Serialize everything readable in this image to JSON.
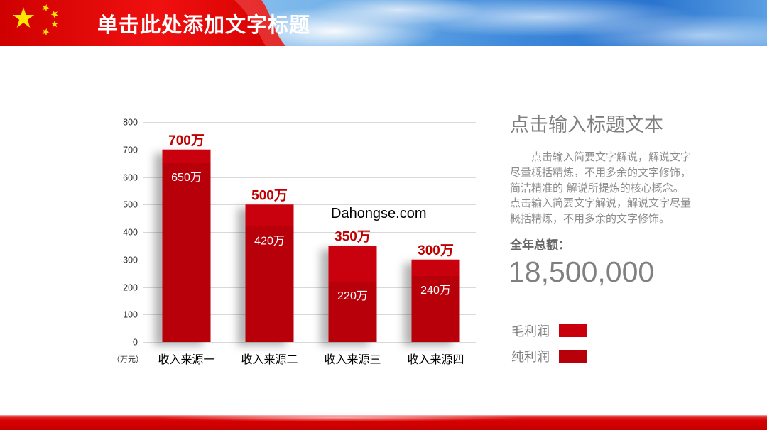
{
  "header": {
    "title": "单击此处添加文字标题"
  },
  "colors": {
    "banner_red": "#e00000",
    "star_yellow": "#ffe400",
    "accent_red": "#c00000",
    "body_text": "#7f7f7f"
  },
  "chart_data": {
    "type": "bar",
    "categories": [
      "收入来源一",
      "收入来源二",
      "收入来源三",
      "收入来源四"
    ],
    "series": [
      {
        "name": "毛利润",
        "values": [
          700,
          500,
          350,
          300
        ],
        "data_labels": [
          "700万",
          "500万",
          "350万",
          "300万"
        ],
        "color": "#c9000c"
      },
      {
        "name": "纯利润",
        "values": [
          650,
          420,
          220,
          240
        ],
        "data_labels": [
          "650万",
          "420万",
          "220万",
          "240万"
        ],
        "color": "#b7000a"
      }
    ],
    "y_ticks": [
      0,
      100,
      200,
      300,
      400,
      500,
      600,
      700,
      800
    ],
    "ylim": [
      0,
      800
    ],
    "ylabel": "（万元）",
    "grid": true,
    "legend": "right",
    "colors": {
      "data_label_top": "#c00000",
      "data_label_inner": "#ffffff",
      "gridline": "#d9d9d9"
    }
  },
  "panel": {
    "title": "点击输入标题文本",
    "body_lines": [
      "点击输入简要文字解说，解说文字",
      "尽量概括精炼，不用多余的文字修饰，",
      "简洁精准的 解说所提炼的核心概念。",
      "点击输入简要文字解说，解说文字尽量",
      "概括精炼，不用多余的文字修饰。"
    ],
    "total_label": "全年总额：",
    "total_value": "18,500,000"
  },
  "watermark": "Dahongse.com"
}
